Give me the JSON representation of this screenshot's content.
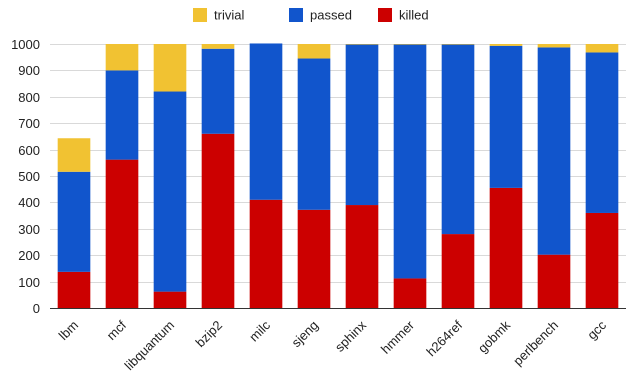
{
  "chart_data": {
    "type": "bar",
    "stacked": true,
    "categories": [
      "lbm",
      "mcf",
      "libquantum",
      "bzip2",
      "milc",
      "sjeng",
      "sphinx",
      "hmmer",
      "h264ref",
      "gobmk",
      "perlbench",
      "gcc"
    ],
    "series": [
      {
        "name": "killed",
        "color": "#cc0000",
        "values": [
          137,
          562,
          62,
          660,
          410,
          372,
          390,
          112,
          280,
          455,
          202,
          360
        ]
      },
      {
        "name": "passed",
        "color": "#1155cc",
        "values": [
          379,
          338,
          758,
          322,
          592,
          573,
          608,
          886,
          718,
          538,
          785,
          608
        ]
      },
      {
        "name": "trivial",
        "color": "#f1c232",
        "values": [
          127,
          100,
          180,
          18,
          0,
          55,
          2,
          2,
          2,
          7,
          13,
          32
        ]
      }
    ],
    "legend_order": [
      "trivial",
      "passed",
      "killed"
    ],
    "legend_position": "top-center",
    "ylim": [
      0,
      1000
    ],
    "yticks": [
      0,
      100,
      200,
      300,
      400,
      500,
      600,
      700,
      800,
      900,
      1000
    ],
    "grid": true,
    "title": "",
    "xlabel": "",
    "ylabel": ""
  }
}
